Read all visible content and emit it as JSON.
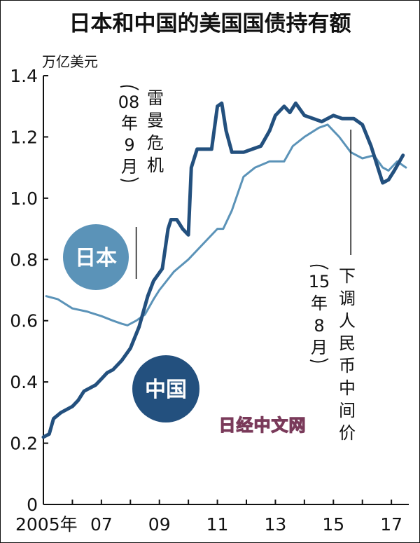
{
  "chart_data": {
    "type": "line",
    "title": "日本和中国的美国国债持有额",
    "ylabel": "万亿美元",
    "ylim": [
      0,
      1.4
    ],
    "y_ticks": [
      "0",
      "0.2",
      "0.4",
      "0.6",
      "0.8",
      "1.0",
      "1.2",
      "1.4"
    ],
    "xlim": [
      2005,
      2017.6
    ],
    "x_ticks": [
      {
        "value": 2005,
        "label": "2005年"
      },
      {
        "value": 2007,
        "label": "07"
      },
      {
        "value": 2009,
        "label": "09"
      },
      {
        "value": 2011,
        "label": "11"
      },
      {
        "value": 2013,
        "label": "13"
      },
      {
        "value": 2015,
        "label": "15"
      },
      {
        "value": 2017,
        "label": "17"
      }
    ],
    "grid": false,
    "series": [
      {
        "name": "日本",
        "color": "#5b93b8",
        "points": [
          [
            2005.1,
            0.68
          ],
          [
            2005.5,
            0.67
          ],
          [
            2006.0,
            0.64
          ],
          [
            2006.5,
            0.63
          ],
          [
            2007.0,
            0.615
          ],
          [
            2007.4,
            0.6
          ],
          [
            2007.7,
            0.59
          ],
          [
            2007.9,
            0.585
          ],
          [
            2008.2,
            0.6
          ],
          [
            2008.5,
            0.62
          ],
          [
            2008.8,
            0.67
          ],
          [
            2009.0,
            0.7
          ],
          [
            2009.5,
            0.76
          ],
          [
            2010.0,
            0.8
          ],
          [
            2010.5,
            0.85
          ],
          [
            2011.0,
            0.9
          ],
          [
            2011.2,
            0.9
          ],
          [
            2011.5,
            0.96
          ],
          [
            2011.9,
            1.07
          ],
          [
            2012.3,
            1.1
          ],
          [
            2012.8,
            1.12
          ],
          [
            2013.3,
            1.12
          ],
          [
            2013.6,
            1.17
          ],
          [
            2014.0,
            1.2
          ],
          [
            2014.5,
            1.23
          ],
          [
            2014.8,
            1.24
          ],
          [
            2015.0,
            1.22
          ],
          [
            2015.2,
            1.2
          ],
          [
            2015.6,
            1.15
          ],
          [
            2016.0,
            1.13
          ],
          [
            2016.4,
            1.14
          ],
          [
            2016.7,
            1.1
          ],
          [
            2016.9,
            1.09
          ],
          [
            2017.2,
            1.12
          ],
          [
            2017.5,
            1.1
          ]
        ]
      },
      {
        "name": "中国",
        "color": "#23507e",
        "points": [
          [
            2005.0,
            0.22
          ],
          [
            2005.2,
            0.23
          ],
          [
            2005.35,
            0.28
          ],
          [
            2005.6,
            0.3
          ],
          [
            2006.0,
            0.32
          ],
          [
            2006.2,
            0.34
          ],
          [
            2006.4,
            0.37
          ],
          [
            2006.8,
            0.39
          ],
          [
            2007.0,
            0.41
          ],
          [
            2007.2,
            0.43
          ],
          [
            2007.4,
            0.44
          ],
          [
            2007.7,
            0.47
          ],
          [
            2008.0,
            0.51
          ],
          [
            2008.3,
            0.58
          ],
          [
            2008.6,
            0.68
          ],
          [
            2008.8,
            0.73
          ],
          [
            2009.1,
            0.77
          ],
          [
            2009.3,
            0.9
          ],
          [
            2009.4,
            0.93
          ],
          [
            2009.6,
            0.93
          ],
          [
            2009.8,
            0.9
          ],
          [
            2010.0,
            0.88
          ],
          [
            2010.1,
            1.1
          ],
          [
            2010.3,
            1.16
          ],
          [
            2010.6,
            1.16
          ],
          [
            2010.8,
            1.16
          ],
          [
            2011.0,
            1.3
          ],
          [
            2011.15,
            1.31
          ],
          [
            2011.3,
            1.22
          ],
          [
            2011.5,
            1.15
          ],
          [
            2011.9,
            1.15
          ],
          [
            2012.2,
            1.16
          ],
          [
            2012.5,
            1.17
          ],
          [
            2012.8,
            1.22
          ],
          [
            2013.0,
            1.27
          ],
          [
            2013.3,
            1.3
          ],
          [
            2013.5,
            1.28
          ],
          [
            2013.7,
            1.31
          ],
          [
            2014.0,
            1.27
          ],
          [
            2014.3,
            1.26
          ],
          [
            2014.6,
            1.25
          ],
          [
            2015.0,
            1.27
          ],
          [
            2015.3,
            1.26
          ],
          [
            2015.7,
            1.26
          ],
          [
            2016.0,
            1.24
          ],
          [
            2016.3,
            1.17
          ],
          [
            2016.5,
            1.11
          ],
          [
            2016.7,
            1.05
          ],
          [
            2016.9,
            1.06
          ],
          [
            2017.1,
            1.09
          ],
          [
            2017.4,
            1.14
          ]
        ]
      }
    ],
    "annotations": [
      {
        "id": "lehman",
        "x": 2008.2,
        "text": "雷曼危机",
        "paren_lines": [
          "08",
          "年",
          "9",
          "月"
        ]
      },
      {
        "id": "rmb",
        "x": 2015.6,
        "text": "下调人民币中间价",
        "paren_lines": [
          "15",
          "年",
          "8",
          "月"
        ]
      }
    ],
    "badges": [
      {
        "series": "日本",
        "label": "日本",
        "color": "#5b93b8"
      },
      {
        "series": "中国",
        "label": "中国",
        "color": "#23507e"
      }
    ]
  },
  "watermark": "日经中文网"
}
